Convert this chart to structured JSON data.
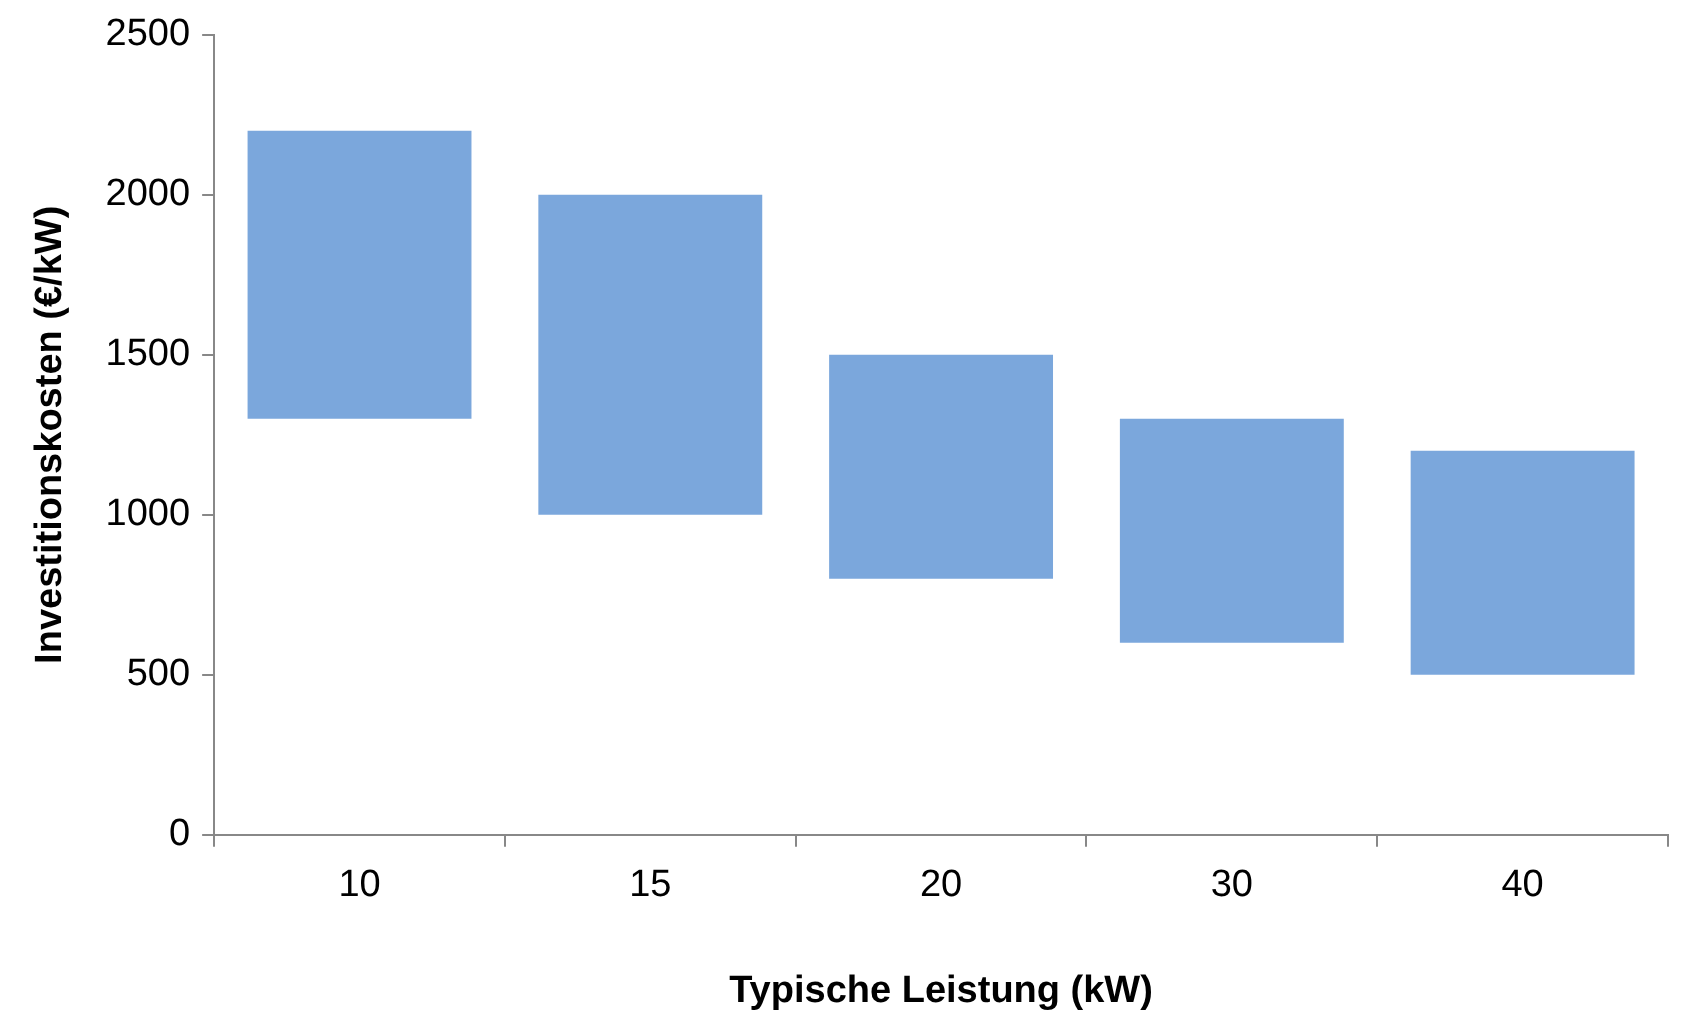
{
  "chart_data": {
    "type": "bar",
    "xlabel": "Typische Leistung (kW)",
    "ylabel": "Investitionskosten (€/kW)",
    "categories": [
      "10",
      "15",
      "20",
      "30",
      "40"
    ],
    "base": [
      1300,
      1000,
      800,
      600,
      500
    ],
    "values": [
      900,
      1000,
      700,
      700,
      700
    ],
    "color": "#7ba7dc",
    "ylim": [
      0,
      2500
    ],
    "yticks": [
      0,
      500,
      1000,
      1500,
      2000,
      2500
    ],
    "grid": false,
    "legend": false
  }
}
